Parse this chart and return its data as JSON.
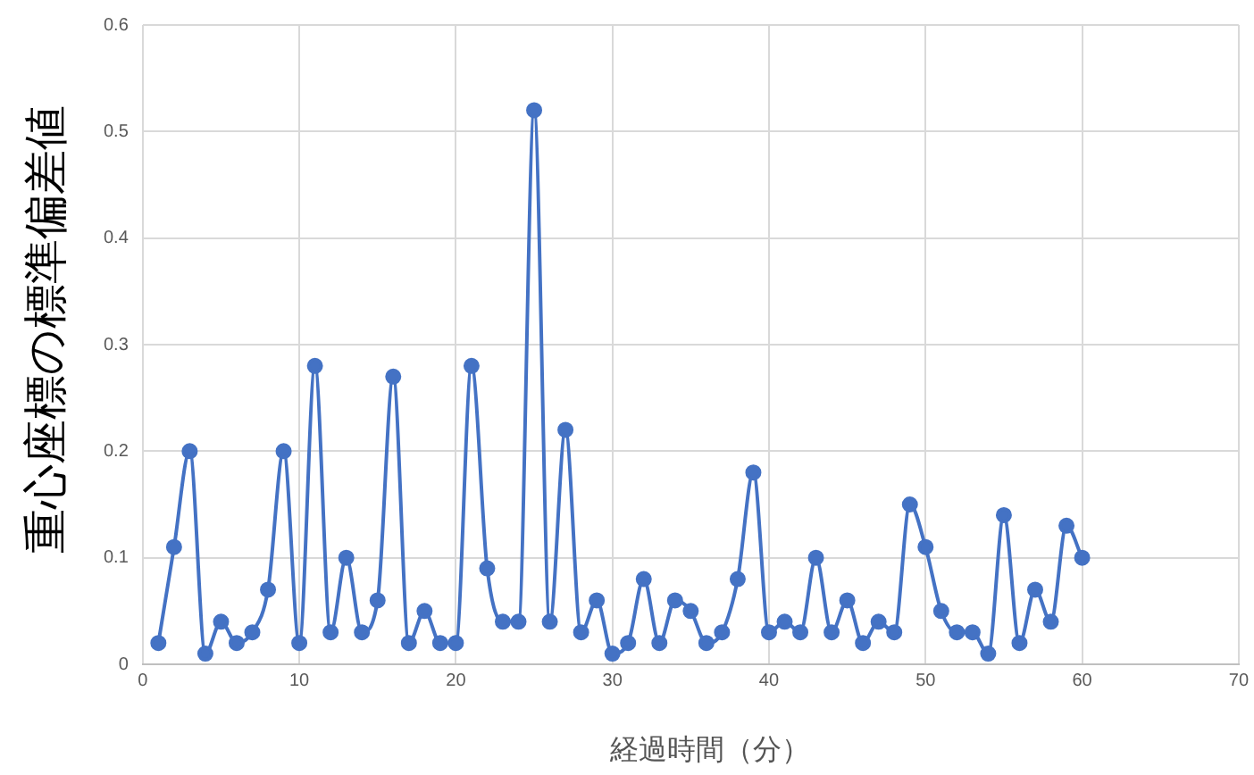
{
  "chart_data": {
    "type": "line",
    "xlabel": "経過時間（分）",
    "ylabel": "重心座標の標準偏差値",
    "x": [
      1,
      2,
      3,
      4,
      5,
      6,
      7,
      8,
      9,
      10,
      11,
      12,
      13,
      14,
      15,
      16,
      17,
      18,
      19,
      20,
      21,
      22,
      23,
      24,
      25,
      26,
      27,
      28,
      29,
      30,
      31,
      32,
      33,
      34,
      35,
      36,
      37,
      38,
      39,
      40,
      41,
      42,
      43,
      44,
      45,
      46,
      47,
      48,
      49,
      50,
      51,
      52,
      53,
      54,
      55,
      56,
      57,
      58,
      59,
      60
    ],
    "series": [
      {
        "color": "#4472c4",
        "values": [
          0.02,
          0.11,
          0.2,
          0.01,
          0.04,
          0.02,
          0.03,
          0.07,
          0.2,
          0.02,
          0.28,
          0.03,
          0.1,
          0.03,
          0.06,
          0.27,
          0.02,
          0.05,
          0.02,
          0.02,
          0.28,
          0.09,
          0.04,
          0.04,
          0.52,
          0.04,
          0.22,
          0.03,
          0.06,
          0.01,
          0.02,
          0.08,
          0.02,
          0.06,
          0.05,
          0.02,
          0.03,
          0.08,
          0.18,
          0.03,
          0.04,
          0.03,
          0.1,
          0.03,
          0.06,
          0.02,
          0.04,
          0.03,
          0.15,
          0.11,
          0.05,
          0.03,
          0.03,
          0.01,
          0.14,
          0.02,
          0.07,
          0.04,
          0.13,
          0.1
        ]
      }
    ],
    "xlim": [
      0,
      70
    ],
    "xticks": [
      0,
      10,
      20,
      30,
      40,
      50,
      60,
      70
    ],
    "ylim": [
      0,
      0.6
    ],
    "yticks": [
      0,
      0.1,
      0.2,
      0.3,
      0.4,
      0.5,
      0.6
    ],
    "grid": true,
    "legend": false,
    "marker": "circle",
    "line_style": "solid"
  }
}
